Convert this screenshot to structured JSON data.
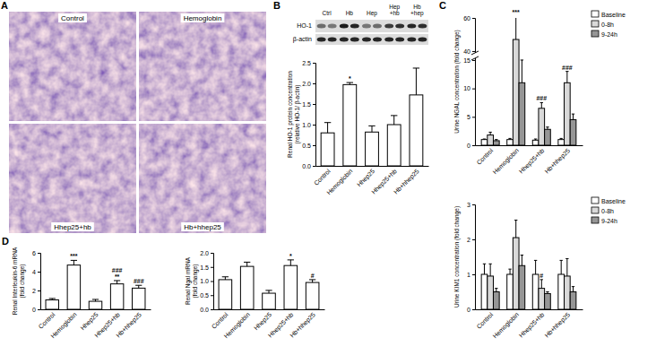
{
  "figure": {
    "images": {
      "panel": "A",
      "labels": [
        "Control",
        "Hemoglobin",
        "Hhep25+hb",
        "Hb+hhep25"
      ]
    },
    "blot": {
      "panel": "B",
      "lanes": [
        [
          "Ctrl"
        ],
        [
          "Hb"
        ],
        [
          "Hep"
        ],
        [
          "Hep",
          "+hb"
        ],
        [
          "Hb",
          "+hep"
        ]
      ],
      "rows": [
        "HO-1",
        "β-actin"
      ]
    }
  },
  "chart_data": [
    {
      "type": "bar",
      "ylabel": [
        "Renal HO-1 protein concentration",
        "(relative HO-1/ β-actin)"
      ],
      "categories": [
        "Control",
        "Hemoglobin",
        "Hhep25",
        "Hhep25+hb",
        "Hb+hhep25"
      ],
      "values": [
        0.8,
        1.97,
        0.82,
        1.0,
        1.72
      ],
      "errors": [
        0.25,
        0.05,
        0.15,
        0.22,
        0.65
      ],
      "significance": [
        null,
        [
          "*"
        ],
        null,
        null,
        null
      ],
      "color": "#ffffff",
      "ylim": [
        0,
        2.5
      ],
      "yticks": [
        {
          "value": 0,
          "label": "0.0"
        },
        0.5,
        {
          "value": 1,
          "label": "1.0"
        },
        1.5,
        {
          "value": 2,
          "label": "2.0"
        },
        2.5
      ]
    },
    {
      "type": "bar",
      "panel": "C",
      "ylabel": [
        "Urine NGAL concentration (fold change)"
      ],
      "categories": [
        "Control",
        "Hemoglobin",
        "Hhep25+hb",
        "Hb+hhep25"
      ],
      "series": [
        {
          "name": "Baseline",
          "color": "#ffffff",
          "values": [
            1.0,
            1.0,
            0.9,
            1.0
          ],
          "errors": [
            0.1,
            0.2,
            0.2,
            0.2
          ],
          "significance": [
            null,
            null,
            null,
            null
          ]
        },
        {
          "name": "0-8h",
          "color": "#d9d9d9",
          "values": [
            1.8,
            47,
            6.5,
            11
          ],
          "errors": [
            0.5,
            14,
            1,
            2
          ],
          "significance": [
            null,
            [
              "***"
            ],
            [
              "###"
            ],
            [
              "###"
            ]
          ]
        },
        {
          "name": "9-24h",
          "color": "#969696",
          "values": [
            0.8,
            11,
            2.8,
            4.5
          ],
          "errors": [
            0.2,
            4,
            0.4,
            1
          ],
          "significance": [
            null,
            null,
            null,
            null
          ]
        }
      ],
      "ylim": [
        0,
        60
      ],
      "ybreak": [
        15,
        40
      ],
      "yticks": [
        0,
        5,
        10,
        15,
        40,
        60
      ],
      "legend": "top-right"
    },
    {
      "type": "bar",
      "ylabel": [
        "Urine KIM1 concentration (fold change)"
      ],
      "categories": [
        "Control",
        "Hemoglobin",
        "Hhep25+hb",
        "Hb+hhep25"
      ],
      "series": [
        {
          "name": "Baseline",
          "color": "#ffffff",
          "values": [
            1.0,
            1.0,
            1.0,
            1.0
          ],
          "errors": [
            0.3,
            0.15,
            0.4,
            0.4
          ],
          "significance": [
            null,
            null,
            null,
            null
          ]
        },
        {
          "name": "0-8h",
          "color": "#d9d9d9",
          "values": [
            0.95,
            2.05,
            0.6,
            0.95
          ],
          "errors": [
            0.35,
            0.5,
            0.25,
            0.5
          ],
          "significance": [
            null,
            null,
            [
              "#"
            ],
            null
          ]
        },
        {
          "name": "9-24h",
          "color": "#969696",
          "values": [
            0.5,
            1.25,
            0.45,
            0.5
          ],
          "errors": [
            0.1,
            0.3,
            0.05,
            0.15
          ],
          "significance": [
            null,
            null,
            null,
            null
          ]
        }
      ],
      "ylim": [
        0,
        3
      ],
      "yticks": [
        0,
        1,
        2,
        3
      ],
      "legend": "top-right"
    },
    {
      "type": "bar",
      "panel": "D",
      "ylabel": [
        "Renal Interleukin-6 mRNA",
        "(fold change)"
      ],
      "categories": [
        "Control",
        "Hemoglobin",
        "Hhep25",
        "Hhep25+hb",
        "Hb+hhep25"
      ],
      "values": [
        1.0,
        4.7,
        0.85,
        2.7,
        2.25
      ],
      "errors": [
        0.15,
        0.5,
        0.2,
        0.35,
        0.3
      ],
      "significance": [
        null,
        [
          "***"
        ],
        null,
        [
          "**",
          "###"
        ],
        [
          "###"
        ]
      ],
      "color": "#ffffff",
      "ylim": [
        0,
        6
      ],
      "yticks": [
        0,
        2,
        4,
        6
      ]
    },
    {
      "type": "bar",
      "ylabel": [
        "Renal Ngal mRNA",
        "(fold change)"
      ],
      "categories": [
        "Control",
        "Hemoglobin",
        "Hhep25",
        "Hhep25+hb",
        "Hb+hhep25"
      ],
      "values": [
        1.05,
        1.52,
        0.57,
        1.55,
        0.95
      ],
      "errors": [
        0.1,
        0.15,
        0.1,
        0.2,
        0.1
      ],
      "significance": [
        null,
        null,
        null,
        [
          "*"
        ],
        [
          "#"
        ]
      ],
      "color": "#ffffff",
      "ylim": [
        0,
        2
      ],
      "yticks": [
        {
          "value": 0,
          "label": "0.0"
        },
        0.5,
        {
          "value": 1,
          "label": "1.0"
        },
        1.5,
        {
          "value": 2,
          "label": "2.0"
        }
      ]
    }
  ]
}
